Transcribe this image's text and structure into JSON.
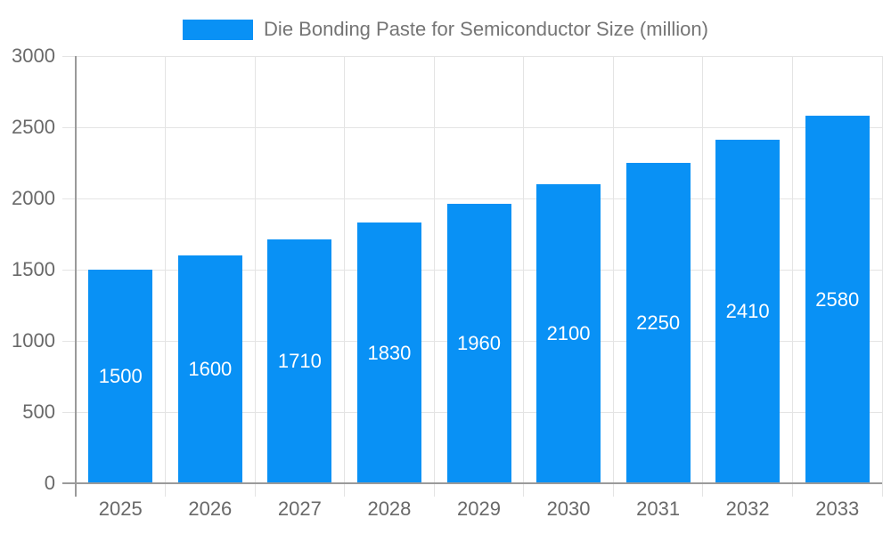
{
  "chart_data": {
    "type": "bar",
    "title": "Die Bonding Paste for Semiconductor Size (million)",
    "legend_position": "top",
    "categories": [
      "2025",
      "2026",
      "2027",
      "2028",
      "2029",
      "2030",
      "2031",
      "2032",
      "2033"
    ],
    "values": [
      1500,
      1600,
      1710,
      1830,
      1960,
      2100,
      2250,
      2410,
      2580
    ],
    "value_labels": [
      "1500",
      "1600",
      "1710",
      "1830",
      "1960",
      "2100",
      "2250",
      "2410",
      "2580"
    ],
    "ylim": [
      0,
      3000
    ],
    "ytick_step": 500,
    "yticks": [
      "0",
      "500",
      "1000",
      "1500",
      "2000",
      "2500",
      "3000"
    ],
    "grid": true,
    "xlabel": "",
    "ylabel": "",
    "colors": {
      "bar": "#0991f5",
      "grid": "#e4e4e4",
      "axis": "#9a9a9a",
      "tick_label": "#696969",
      "title": "#757575",
      "value_label": "#ffffff",
      "background": "#ffffff"
    }
  }
}
